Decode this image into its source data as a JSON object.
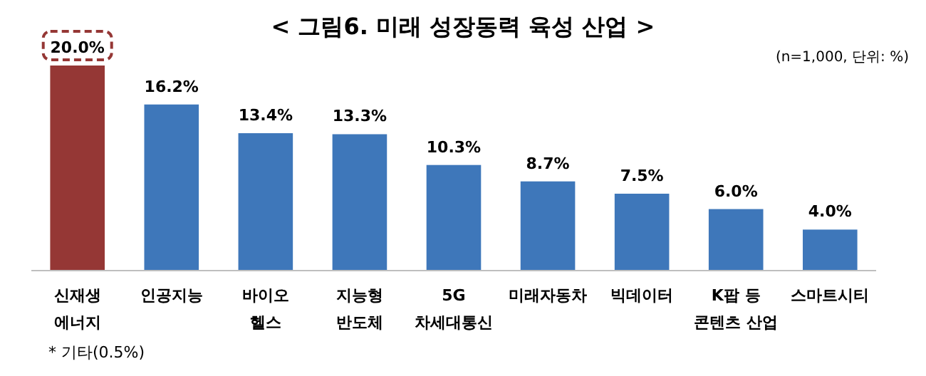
{
  "chart_data": {
    "type": "bar",
    "title": "< 그림6. 미래 성장동력 육성 산업 >",
    "annotations": [
      "(n=1,000,  단위:  %)",
      "*  기타(0.5%)"
    ],
    "categories": [
      "신재생\n에너지",
      "인공지능",
      "바이오\n헬스",
      "지능형\n반도체",
      "5G\n차세대통신",
      "미래자동차",
      "빅데이터",
      "K팝 등\n콘텐츠 산업",
      "스마트시티"
    ],
    "values": [
      20.0,
      16.2,
      13.4,
      13.3,
      10.3,
      8.7,
      7.5,
      6.0,
      4.0
    ],
    "colors": [
      "#953735",
      "#3e77ba",
      "#3e77ba",
      "#3e77ba",
      "#3e77ba",
      "#3e77ba",
      "#3e77ba",
      "#3e77ba",
      "#3e77ba"
    ],
    "value_labels": [
      "20.0%",
      "16.2%",
      "13.4%",
      "13.3%",
      "10.3%",
      "8.7%",
      "7.5%",
      "6.0%",
      "4.0%"
    ]
  }
}
